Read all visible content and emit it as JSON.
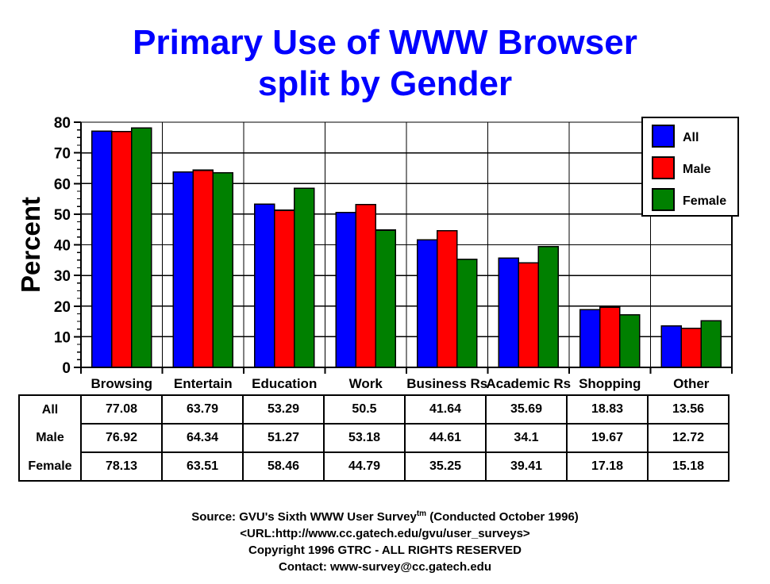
{
  "title": {
    "line1": "Primary Use of WWW Browser",
    "line2": "split by Gender",
    "color": "#0000FF"
  },
  "chart_data": {
    "type": "bar",
    "title": "Primary Use of WWW Browser split by Gender",
    "xlabel": "",
    "ylabel": "Percent",
    "ylim": [
      0,
      80
    ],
    "yticks": [
      0,
      10,
      20,
      30,
      40,
      50,
      60,
      70,
      80
    ],
    "minor_tick_step": 2.5,
    "grid": true,
    "legend_position": "top-right",
    "categories": [
      "Browsing",
      "Entertain",
      "Education",
      "Work",
      "Business Rs",
      "Academic Rs",
      "Shopping",
      "Other"
    ],
    "series": [
      {
        "name": "All",
        "color": "#0000FF",
        "values": [
          77.08,
          63.79,
          53.29,
          50.5,
          41.64,
          35.69,
          18.83,
          13.56
        ]
      },
      {
        "name": "Male",
        "color": "#FF0000",
        "values": [
          76.92,
          64.34,
          51.27,
          53.18,
          44.61,
          34.1,
          19.67,
          12.72
        ]
      },
      {
        "name": "Female",
        "color": "#008000",
        "values": [
          78.13,
          63.51,
          58.46,
          44.79,
          35.25,
          39.41,
          17.18,
          15.18
        ]
      }
    ]
  },
  "footer": {
    "source_prefix": "Source: GVU's Sixth WWW User Survey",
    "source_sup": "tm",
    "source_suffix": " (Conducted October 1996)",
    "url_line": "<URL:http://www.cc.gatech.edu/gvu/user_surveys>",
    "copyright_line": "Copyright 1996 GTRC -  ALL RIGHTS RESERVED",
    "contact_line": "Contact: www-survey@cc.gatech.edu"
  }
}
